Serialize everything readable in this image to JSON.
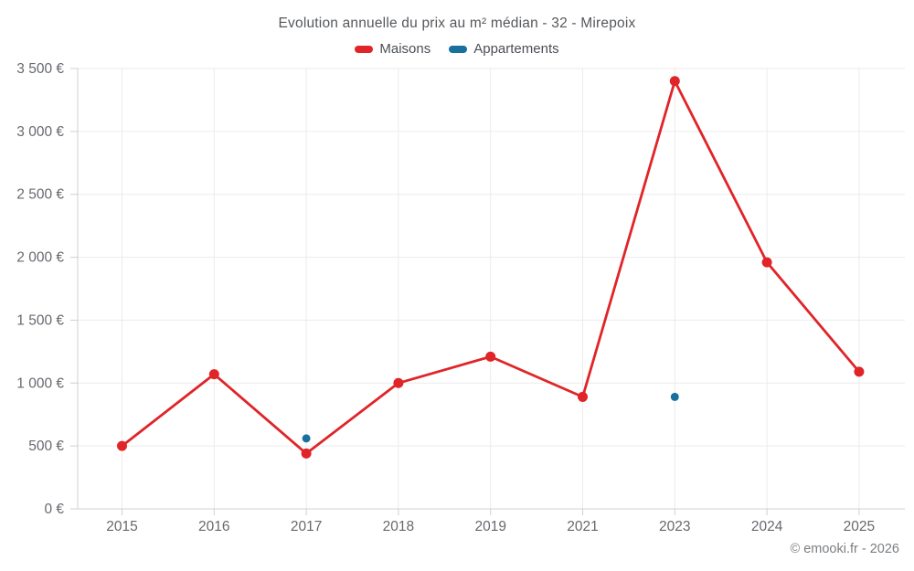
{
  "title": "Evolution annuelle du prix au m² médian - 32 - Mirepoix",
  "legend": {
    "items": [
      {
        "label": "Maisons",
        "color": "#e02428"
      },
      {
        "label": "Appartements",
        "color": "#17709e"
      }
    ]
  },
  "copyright": "© emooki.fr - 2026",
  "chart_data": {
    "type": "line",
    "title": "Evolution annuelle du prix au m² médian - 32 - Mirepoix",
    "categories": [
      "2015",
      "2016",
      "2017",
      "2018",
      "2019",
      "2021",
      "2023",
      "2024",
      "2025"
    ],
    "series": [
      {
        "name": "Maisons",
        "color": "#e02428",
        "values": [
          500,
          1070,
          440,
          1000,
          1210,
          890,
          3400,
          1960,
          1090
        ],
        "line": true,
        "marker_radius": 5.5
      },
      {
        "name": "Appartements",
        "color": "#17709e",
        "values": [
          null,
          null,
          560,
          null,
          null,
          null,
          890,
          null,
          null
        ],
        "line": false,
        "marker_radius": 4.5
      }
    ],
    "xlabel": "",
    "ylabel": "",
    "ylim": [
      0,
      3500
    ],
    "y_tick_step": 500,
    "y_tick_labels": [
      "0 €",
      "500 €",
      "1 000 €",
      "1 500 €",
      "2 000 €",
      "2 500 €",
      "3 000 €",
      "3 500 €"
    ],
    "grid": true,
    "legend_position": "top"
  },
  "style_colors": {
    "grid": "#ebebeb",
    "axis": "#d0d0d0",
    "tick_text": "#66696e",
    "title_text": "#55585c"
  }
}
